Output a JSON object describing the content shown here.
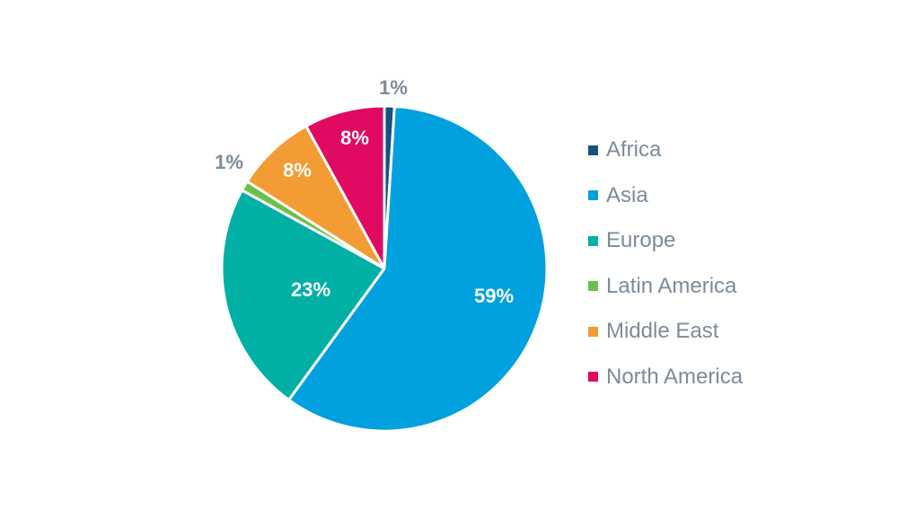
{
  "chart_data": {
    "type": "pie",
    "slices": [
      {
        "name": "Africa",
        "value": 1,
        "label": "1%",
        "color": "#17517e"
      },
      {
        "name": "Asia",
        "value": 59,
        "label": "59%",
        "color": "#00a1de"
      },
      {
        "name": "Europe",
        "value": 23,
        "label": "23%",
        "color": "#00b0a5"
      },
      {
        "name": "Latin America",
        "value": 1,
        "label": "1%",
        "color": "#6cc04a"
      },
      {
        "name": "Middle East",
        "value": 8,
        "label": "8%",
        "color": "#f39c34"
      },
      {
        "name": "North America",
        "value": 8,
        "label": "8%",
        "color": "#e10a62"
      }
    ],
    "legend_position": "right",
    "start": "top",
    "direction": "clockwise"
  },
  "colors": {
    "outside_label": "#7d8b9a",
    "inside_label": "#ffffff",
    "legend_text": "#7d8b9a",
    "separator": "#ffffff"
  }
}
